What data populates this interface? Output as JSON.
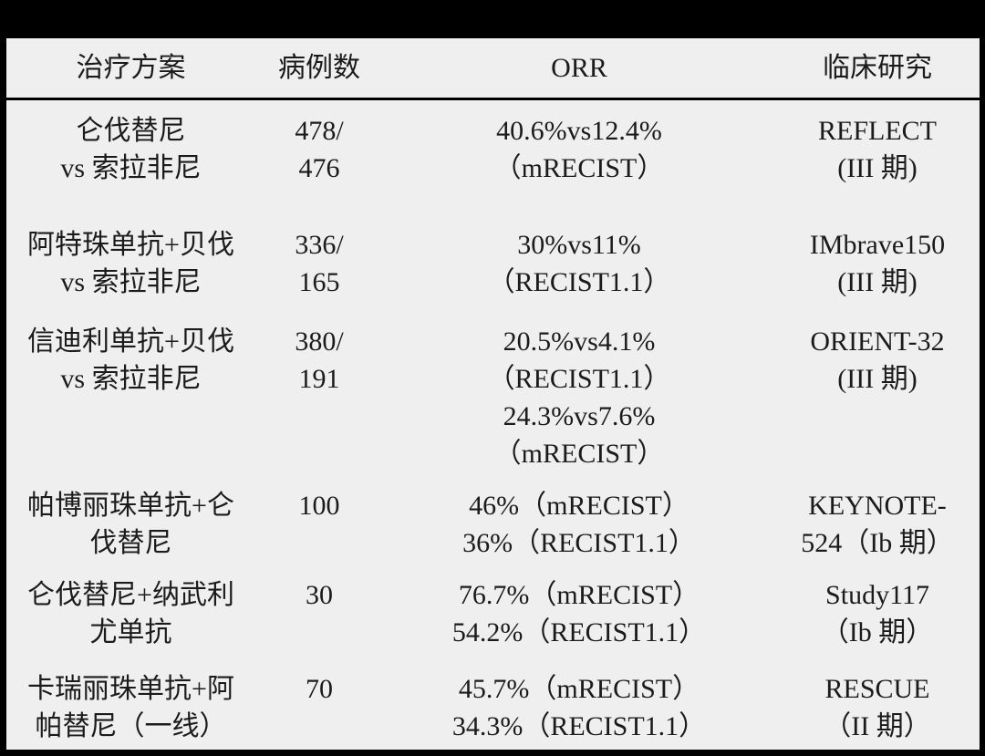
{
  "table": {
    "headers": {
      "regimen": "治疗方案",
      "cases": "病例数",
      "orr": "ORR",
      "study": "临床研究"
    },
    "rows": [
      {
        "regimen": "仑伐替尼\nvs 索拉非尼",
        "cases": "478/\n476",
        "orr": "40.6%vs12.4%\n（mRECIST）",
        "study": "REFLECT\n(III 期)"
      },
      {
        "regimen": "阿特珠单抗+贝伐\nvs 索拉非尼",
        "cases": "336/\n165",
        "orr": "30%vs11%\n（RECIST1.1）",
        "study": "IMbrave150\n(III 期)"
      },
      {
        "regimen": "信迪利单抗+贝伐\nvs 索拉非尼",
        "cases": "380/\n191",
        "orr": "20.5%vs4.1%\n（RECIST1.1）\n24.3%vs7.6%\n（mRECIST）",
        "study": "ORIENT-32\n(III 期)"
      },
      {
        "regimen": "帕博丽珠单抗+仑\n伐替尼",
        "cases": "100",
        "orr": "46%（mRECIST）\n36%（RECIST1.1）",
        "study": "KEYNOTE-\n524（Ib 期）"
      },
      {
        "regimen": "仑伐替尼+纳武利\n尤单抗",
        "cases": "30",
        "orr": "76.7%（mRECIST）\n54.2%（RECIST1.1）",
        "study": "Study117\n（Ib 期）"
      },
      {
        "regimen": "卡瑞丽珠单抗+阿\n帕替尼（一线）",
        "cases": "70",
        "orr": "45.7%（mRECIST）\n34.3%（RECIST1.1）",
        "study": "RESCUE\n（II 期）"
      }
    ]
  },
  "chart_data": {
    "type": "table",
    "columns": [
      "治疗方案",
      "病例数",
      "ORR",
      "临床研究"
    ],
    "rows": [
      [
        "仑伐替尼 vs 索拉非尼",
        "478/476",
        "40.6%vs12.4%（mRECIST）",
        "REFLECT (III 期)"
      ],
      [
        "阿特珠单抗+贝伐 vs 索拉非尼",
        "336/165",
        "30%vs11%（RECIST1.1）",
        "IMbrave150 (III 期)"
      ],
      [
        "信迪利单抗+贝伐 vs 索拉非尼",
        "380/191",
        "20.5%vs4.1%（RECIST1.1）24.3%vs7.6%（mRECIST）",
        "ORIENT-32 (III 期)"
      ],
      [
        "帕博丽珠单抗+仑伐替尼",
        "100",
        "46%（mRECIST）36%（RECIST1.1）",
        "KEYNOTE-524（Ib 期）"
      ],
      [
        "仑伐替尼+纳武利尤单抗",
        "30",
        "76.7%（mRECIST）54.2%（RECIST1.1）",
        "Study117（Ib 期）"
      ],
      [
        "卡瑞丽珠单抗+阿帕替尼（一线）",
        "70",
        "45.7%（mRECIST）34.3%（RECIST1.1）",
        "RESCUE（II 期）"
      ]
    ]
  },
  "colors": {
    "frame": "#000000",
    "table_background": "#efefef",
    "text": "#1b1b1b",
    "header_rule": "#000000"
  }
}
